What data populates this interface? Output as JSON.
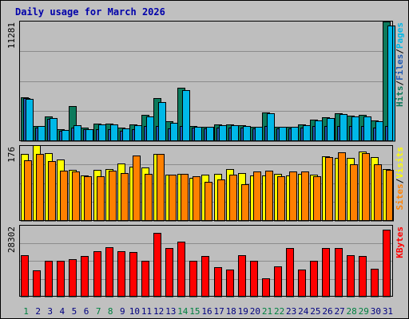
{
  "title": "Daily usage for March 2026",
  "colors": {
    "background": "#c0c0c0",
    "plot_bg": "#bebebe",
    "title": "#0000aa",
    "hits": "#0c7a5c",
    "files": "#1e5ab4",
    "pages": "#00b8e8",
    "visits": "#ffff00",
    "sites": "#ff8000",
    "kbytes": "#ff0000",
    "weekday_label": "#000080",
    "weekend_label": "#008040"
  },
  "chart_data": [
    {
      "type": "bar",
      "panel": "hits-files-pages",
      "categories": [
        "1",
        "2",
        "3",
        "4",
        "5",
        "6",
        "7",
        "8",
        "9",
        "10",
        "11",
        "12",
        "13",
        "14",
        "15",
        "16",
        "17",
        "18",
        "19",
        "20",
        "21",
        "22",
        "23",
        "24",
        "25",
        "26",
        "27",
        "28",
        "29",
        "30",
        "31"
      ],
      "series": [
        {
          "name": "Hits",
          "color": "hits",
          "values": [
            4100,
            1450,
            2300,
            1100,
            3250,
            1240,
            1650,
            1650,
            1240,
            1600,
            2500,
            4000,
            1900,
            4970,
            1450,
            1380,
            1560,
            1540,
            1480,
            1380,
            2700,
            1380,
            1380,
            1540,
            2040,
            2220,
            2640,
            2400,
            2440,
            1950,
            11200
          ]
        },
        {
          "name": "Files",
          "color": "files",
          "values": [
            4000,
            1300,
            2100,
            1000,
            1300,
            1100,
            1100,
            1100,
            1000,
            1100,
            1400,
            1400,
            1200,
            1400,
            1300,
            1200,
            1300,
            1300,
            1300,
            1200,
            1400,
            1200,
            1200,
            1300,
            1400,
            1400,
            1400,
            1400,
            1400,
            1300,
            1400
          ]
        },
        {
          "name": "Pages",
          "color": "pages",
          "values": [
            3950,
            1400,
            2150,
            1050,
            1520,
            1140,
            1550,
            1550,
            1190,
            1520,
            2300,
            3650,
            1700,
            4750,
            1380,
            1350,
            1500,
            1490,
            1430,
            1330,
            2600,
            1340,
            1340,
            1490,
            1970,
            2160,
            2530,
            2300,
            2320,
            1870,
            10830
          ]
        }
      ],
      "ymax_label": "11281",
      "axis_label_parts": [
        {
          "text": "Hits",
          "color": "hits"
        },
        {
          "text": "Files",
          "color": "files"
        },
        {
          "text": "Pages",
          "color": "pages"
        }
      ]
    },
    {
      "type": "bar",
      "panel": "visits-sites",
      "categories": [
        "1",
        "2",
        "3",
        "4",
        "5",
        "6",
        "7",
        "8",
        "9",
        "10",
        "11",
        "12",
        "13",
        "14",
        "15",
        "16",
        "17",
        "18",
        "19",
        "20",
        "21",
        "22",
        "23",
        "24",
        "25",
        "26",
        "27",
        "28",
        "29",
        "30",
        "31"
      ],
      "series": [
        {
          "name": "Visits",
          "color": "visits",
          "values": [
            156,
            176,
            157,
            142,
            119,
            106,
            119,
            120,
            134,
            126,
            125,
            155,
            107,
            109,
            100,
            107,
            109,
            121,
            111,
            106,
            105,
            110,
            105,
            109,
            108,
            150,
            146,
            147,
            162,
            148,
            120
          ]
        },
        {
          "name": "Sites",
          "color": "sites",
          "values": [
            140,
            155,
            139,
            116,
            114,
            103,
            104,
            117,
            111,
            151,
            110,
            155,
            107,
            109,
            103,
            91,
            96,
            107,
            86,
            114,
            116,
            104,
            114,
            114,
            104,
            149,
            159,
            131,
            157,
            131,
            118
          ]
        }
      ],
      "ymax_label": "176",
      "axis_label_parts": [
        {
          "text": "Sites",
          "color": "sites"
        },
        {
          "text": "Visits",
          "color": "visits"
        }
      ]
    },
    {
      "type": "bar",
      "panel": "kbytes",
      "categories": [
        "1",
        "2",
        "3",
        "4",
        "5",
        "6",
        "7",
        "8",
        "9",
        "10",
        "11",
        "12",
        "13",
        "14",
        "15",
        "16",
        "17",
        "18",
        "19",
        "20",
        "21",
        "22",
        "23",
        "24",
        "25",
        "26",
        "27",
        "28",
        "29",
        "30",
        "31"
      ],
      "series": [
        {
          "name": "KBytes",
          "color": "kbytes",
          "values": [
            16400,
            10500,
            14200,
            14000,
            14800,
            16000,
            17800,
            19600,
            17900,
            17500,
            14300,
            25200,
            19300,
            21800,
            14200,
            16100,
            11700,
            10800,
            16300,
            14300,
            7100,
            12000,
            19200,
            10600,
            14300,
            19100,
            19300,
            16300,
            16100,
            11000,
            26300
          ]
        }
      ],
      "ymax_label": "28302",
      "axis_label_parts": [
        {
          "text": "KBytes",
          "color": "kbytes"
        }
      ]
    }
  ],
  "weekend_days": [
    "1",
    "7",
    "8",
    "14",
    "15",
    "21",
    "22",
    "28",
    "29"
  ]
}
